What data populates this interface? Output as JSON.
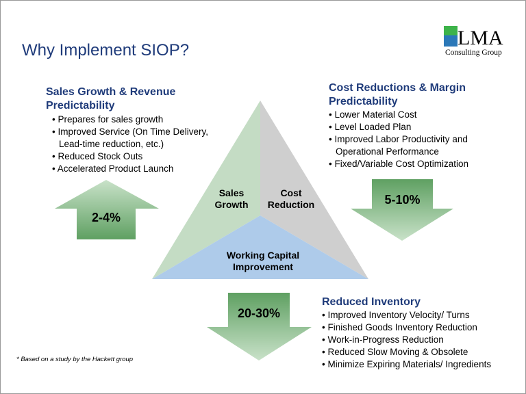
{
  "title": "Why Implement SIOP?",
  "logo": {
    "big": "LMA",
    "small": "Consulting Group"
  },
  "sales": {
    "heading": [
      "Sales Growth & Revenue",
      "Predictability"
    ],
    "items": [
      "Prepares for sales growth",
      "Improved Service (On Time Delivery, Lead-time reduction, etc.)",
      "Reduced Stock Outs",
      "Accelerated Product Launch"
    ],
    "value": "2-4%"
  },
  "cost": {
    "heading": [
      "Cost Reductions & Margin",
      "Predictability"
    ],
    "items": [
      "Lower Material Cost",
      "Level Loaded Plan",
      "Improved Labor Productivity and Operational Performance",
      "Fixed/Variable Cost Optimization"
    ],
    "value": "5-10%"
  },
  "inventory": {
    "heading": "Reduced Inventory",
    "items": [
      "Improved Inventory Velocity/ Turns",
      "Finished Goods Inventory Reduction",
      "Work-in-Progress Reduction",
      "Reduced Slow Moving & Obsolete",
      "Minimize Expiring Materials/ Ingredients"
    ],
    "value": "20-30%"
  },
  "triangle": {
    "sales": [
      "Sales",
      "Growth"
    ],
    "cost": [
      "Cost",
      "Reduction"
    ],
    "capital": [
      "Working Capital",
      "Improvement"
    ]
  },
  "footnote": "*  Based on a study by the Hackett group",
  "colors": {
    "title": "#1f3b7a",
    "green": "#c4dcc4",
    "gray": "#cfcfcf",
    "blue": "#aecbea",
    "arrow": "#79b47c"
  }
}
